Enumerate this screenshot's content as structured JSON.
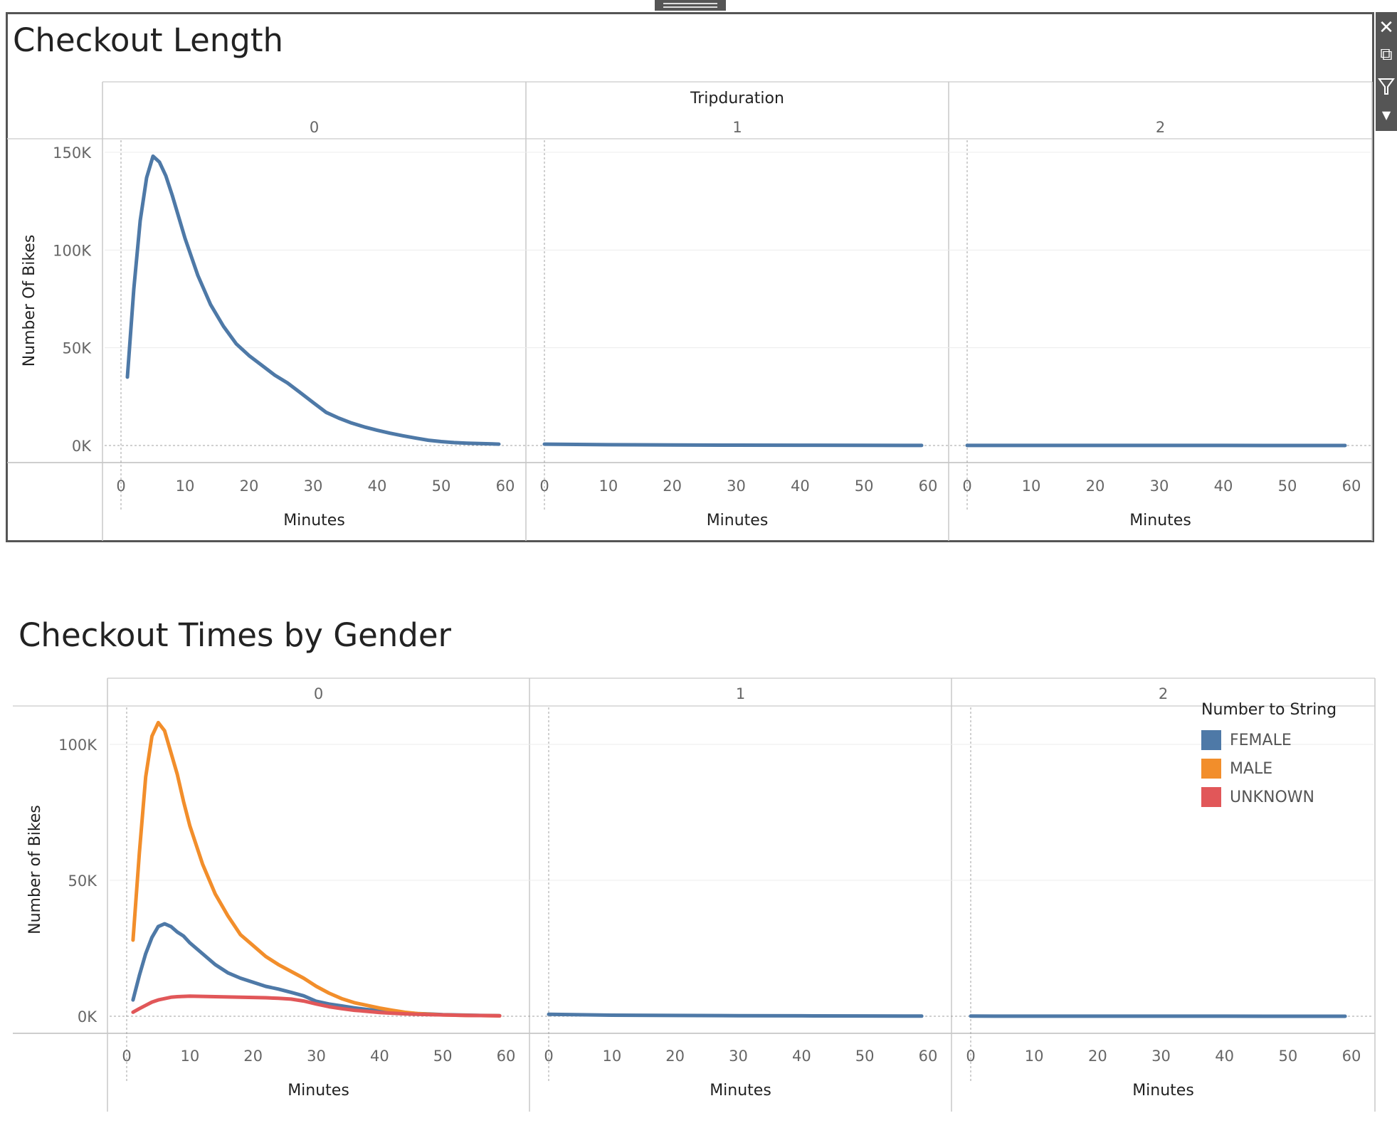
{
  "charts": {
    "chart1": {
      "title": "Checkout Length",
      "column_header": "Tripduration",
      "y_label": "Number Of Bikes",
      "x_label": "Minutes"
    },
    "chart2": {
      "title": "Checkout Times by Gender",
      "y_label": "Number of Bikes",
      "x_label": "Minutes",
      "legend_title": "Number to String",
      "legend": [
        {
          "label": "FEMALE",
          "color": "#4E79A7"
        },
        {
          "label": "MALE",
          "color": "#F28E2B"
        },
        {
          "label": "UNKNOWN",
          "color": "#E15759"
        }
      ]
    }
  },
  "toolbar": {
    "close": "close-icon",
    "popout": "popout-icon",
    "filter": "filter-icon",
    "more": "caret-down-icon"
  },
  "chart_data": [
    {
      "type": "line",
      "title": "Checkout Length",
      "xlabel": "Minutes",
      "ylabel": "Number Of Bikes",
      "facet_label": "Tripduration",
      "facets": [
        "0",
        "1",
        "2"
      ],
      "xlim": [
        0,
        60
      ],
      "xticks": [
        0,
        10,
        20,
        30,
        40,
        50,
        60
      ],
      "ylim": [
        0,
        150000
      ],
      "yticks": [
        0,
        50000,
        100000,
        150000
      ],
      "ytick_labels": [
        "0K",
        "50K",
        "100K",
        "150K"
      ],
      "color": "#4E79A7",
      "panels": [
        {
          "facet": "0",
          "x": [
            1,
            2,
            3,
            4,
            5,
            6,
            7,
            8,
            9,
            10,
            12,
            14,
            16,
            18,
            20,
            22,
            24,
            26,
            28,
            30,
            32,
            34,
            36,
            38,
            40,
            42,
            44,
            46,
            48,
            50,
            52,
            54,
            56,
            58,
            59
          ],
          "y": [
            35000,
            80000,
            115000,
            137000,
            148000,
            145000,
            138000,
            128000,
            117000,
            106000,
            87000,
            72000,
            61000,
            52000,
            46000,
            41000,
            36000,
            32000,
            27000,
            22000,
            17000,
            14000,
            11500,
            9500,
            7800,
            6300,
            5000,
            3800,
            2700,
            2000,
            1500,
            1200,
            1000,
            800,
            700
          ]
        },
        {
          "facet": "1",
          "x": [
            0,
            10,
            20,
            30,
            40,
            50,
            59
          ],
          "y": [
            700,
            400,
            300,
            200,
            150,
            100,
            50
          ]
        },
        {
          "facet": "2",
          "x": [
            0,
            10,
            20,
            30,
            40,
            50,
            59
          ],
          "y": [
            40,
            30,
            30,
            20,
            20,
            10,
            10
          ]
        }
      ]
    },
    {
      "type": "line",
      "title": "Checkout Times by Gender",
      "xlabel": "Minutes",
      "ylabel": "Number of Bikes",
      "facets": [
        "0",
        "1",
        "2"
      ],
      "xlim": [
        0,
        60
      ],
      "xticks": [
        0,
        10,
        20,
        30,
        40,
        50,
        60
      ],
      "ylim": [
        0,
        100000
      ],
      "yticks": [
        0,
        50000,
        100000
      ],
      "ytick_labels": [
        "0K",
        "50K",
        "100K"
      ],
      "legend_title": "Number to String",
      "legend_position": "top-right",
      "panels": [
        {
          "facet": "0",
          "x": [
            1,
            2,
            3,
            4,
            5,
            6,
            7,
            8,
            9,
            10,
            12,
            14,
            16,
            18,
            20,
            22,
            24,
            26,
            28,
            30,
            32,
            34,
            36,
            38,
            40,
            42,
            44,
            46,
            48,
            50,
            52,
            54,
            56,
            58,
            59
          ],
          "series": [
            {
              "name": "FEMALE",
              "color": "#4E79A7",
              "y": [
                6000,
                15000,
                23000,
                29000,
                33000,
                34000,
                33000,
                31000,
                29500,
                27000,
                23000,
                19000,
                16000,
                14000,
                12500,
                11000,
                10000,
                8800,
                7500,
                5500,
                4500,
                3800,
                3100,
                2500,
                2000,
                1600,
                1300,
                1000,
                800,
                600,
                500,
                400,
                300,
                250,
                200
              ]
            },
            {
              "name": "MALE",
              "color": "#F28E2B",
              "y": [
                28000,
                60000,
                88000,
                103000,
                108000,
                105000,
                97000,
                89000,
                79000,
                70000,
                56000,
                45000,
                37000,
                30000,
                26000,
                22000,
                19000,
                16500,
                14000,
                11000,
                8500,
                6500,
                5000,
                4000,
                3000,
                2200,
                1500,
                1000,
                700,
                500,
                400,
                300,
                250,
                200,
                150
              ]
            },
            {
              "name": "UNKNOWN",
              "color": "#E15759",
              "y": [
                1500,
                2800,
                4000,
                5200,
                6000,
                6500,
                7000,
                7200,
                7300,
                7400,
                7300,
                7200,
                7100,
                7000,
                6900,
                6800,
                6600,
                6300,
                5600,
                4500,
                3500,
                2800,
                2200,
                1800,
                1400,
                1100,
                900,
                700,
                600,
                500,
                400,
                300,
                250,
                200,
                150
              ]
            }
          ]
        },
        {
          "facet": "1",
          "x": [
            0,
            10,
            20,
            30,
            40,
            50,
            59
          ],
          "series": [
            {
              "name": "FEMALE",
              "color": "#4E79A7",
              "y": [
                700,
                400,
                300,
                200,
                150,
                100,
                50
              ]
            }
          ]
        },
        {
          "facet": "2",
          "x": [
            0,
            10,
            20,
            30,
            40,
            50,
            59
          ],
          "series": [
            {
              "name": "FEMALE",
              "color": "#4E79A7",
              "y": [
                40,
                30,
                30,
                20,
                20,
                10,
                10
              ]
            }
          ]
        }
      ]
    }
  ]
}
